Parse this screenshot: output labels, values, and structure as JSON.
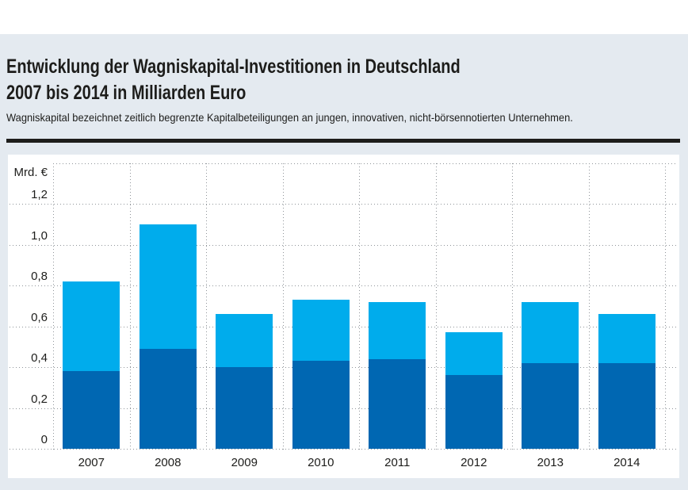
{
  "page": {
    "background_color": "#E4EAF0",
    "top_band_color": "#FFFFFF",
    "text_color": "#1D1D1B"
  },
  "header": {
    "title_line1": "Entwicklung der Wagniskapital-Investitionen in Deutschland",
    "title_line2": "2007 bis 2014 in Milliarden Euro",
    "subtitle": "Wagniskapital bezeichnet zeitlich begrenzte Kapitalbeteiligungen an jungen, innovativen, nicht-börsennotierten Unternehmen."
  },
  "chart": {
    "unit_label": "Mrd. €",
    "y_tick_labels": [
      "1,2",
      "1,0",
      "0,8",
      "0,6",
      "0,4",
      "0,2",
      "0"
    ],
    "y_tick_values": [
      1.2,
      1.0,
      0.8,
      0.6,
      0.4,
      0.2,
      0
    ],
    "colors": {
      "light_blue": "#00ACEC",
      "dark_blue": "#0067B2",
      "panel": "#FFFFFF",
      "grid_dots": "#8F9499",
      "text": "#1D1D1B",
      "divider": "#1D1D1B"
    }
  },
  "chart_data": {
    "type": "bar",
    "stacked": true,
    "title": "Entwicklung der Wagniskapital-Investitionen in Deutschland 2007 bis 2014 in Milliarden Euro",
    "categories": [
      "2007",
      "2008",
      "2009",
      "2010",
      "2011",
      "2012",
      "2013",
      "2014"
    ],
    "series": [
      {
        "name": "unteres Segment (dunkelblau)",
        "color": "#0067B2",
        "values": [
          0.38,
          0.49,
          0.4,
          0.43,
          0.44,
          0.36,
          0.42,
          0.42
        ]
      },
      {
        "name": "oberes Segment (hellblau)",
        "color": "#00ACEC",
        "values": [
          0.44,
          0.61,
          0.26,
          0.3,
          0.28,
          0.21,
          0.3,
          0.24
        ]
      }
    ],
    "totals": [
      0.82,
      1.1,
      0.66,
      0.73,
      0.72,
      0.57,
      0.72,
      0.66
    ],
    "xlabel": "",
    "ylabel": "Mrd. €",
    "ylim": [
      0,
      1.4
    ],
    "grid": "dotted horizontal and vertical lines",
    "legend": "none"
  }
}
